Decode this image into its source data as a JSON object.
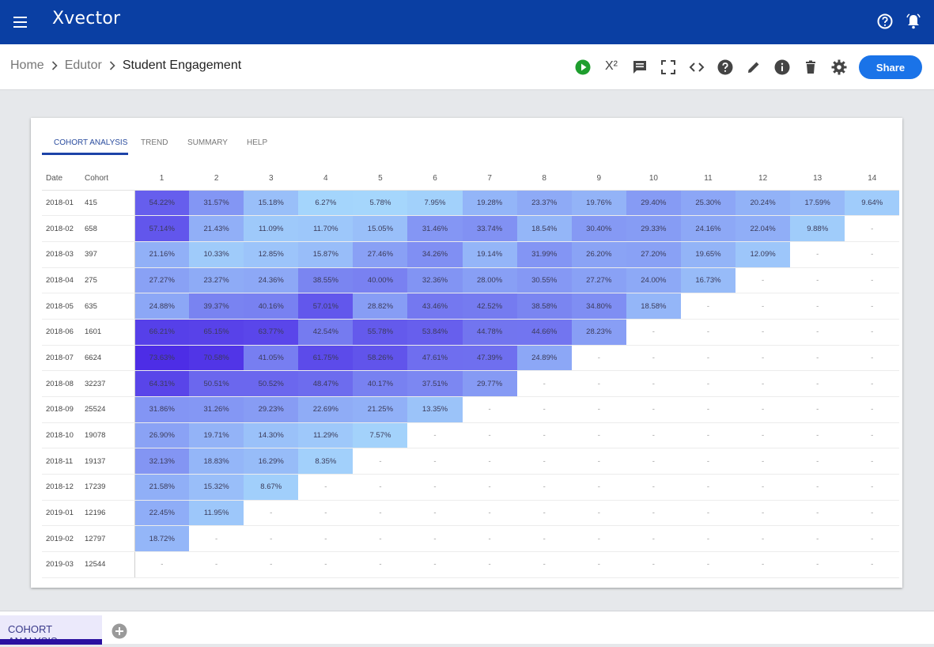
{
  "app": {
    "logo": "Xvector"
  },
  "breadcrumb": {
    "items": [
      "Home",
      "Edutor",
      "Student Engagement"
    ]
  },
  "toolbar": {
    "share_label": "Share",
    "formula_label": "X²"
  },
  "tabs": [
    "COHORT ANALYSIS",
    "TREND",
    "SUMMARY",
    "HELP"
  ],
  "bottom_tabs": [
    "COHORT ANALYSIS"
  ],
  "colors": {
    "topbar": "#0a3fa3",
    "accent": "#1a73e8",
    "run": "#1e9e2e"
  },
  "table": {
    "headers": [
      "Date",
      "Cohort",
      "1",
      "2",
      "3",
      "4",
      "5",
      "6",
      "7",
      "8",
      "9",
      "10",
      "11",
      "12",
      "13",
      "14"
    ],
    "rows": [
      {
        "date": "2018-01",
        "cohort": "415",
        "values": [
          "54.22%",
          "31.57%",
          "15.18%",
          "6.27%",
          "5.78%",
          "7.95%",
          "19.28%",
          "23.37%",
          "19.76%",
          "29.40%",
          "25.30%",
          "20.24%",
          "17.59%",
          "9.64%"
        ]
      },
      {
        "date": "2018-02",
        "cohort": "658",
        "values": [
          "57.14%",
          "21.43%",
          "11.09%",
          "11.70%",
          "15.05%",
          "31.46%",
          "33.74%",
          "18.54%",
          "30.40%",
          "29.33%",
          "24.16%",
          "22.04%",
          "9.88%",
          "-"
        ]
      },
      {
        "date": "2018-03",
        "cohort": "397",
        "values": [
          "21.16%",
          "10.33%",
          "12.85%",
          "15.87%",
          "27.46%",
          "34.26%",
          "19.14%",
          "31.99%",
          "26.20%",
          "27.20%",
          "19.65%",
          "12.09%",
          "-",
          "-"
        ]
      },
      {
        "date": "2018-04",
        "cohort": "275",
        "values": [
          "27.27%",
          "23.27%",
          "24.36%",
          "38.55%",
          "40.00%",
          "32.36%",
          "28.00%",
          "30.55%",
          "27.27%",
          "24.00%",
          "16.73%",
          "-",
          "-",
          "-"
        ]
      },
      {
        "date": "2018-05",
        "cohort": "635",
        "values": [
          "24.88%",
          "39.37%",
          "40.16%",
          "57.01%",
          "28.82%",
          "43.46%",
          "42.52%",
          "38.58%",
          "34.80%",
          "18.58%",
          "-",
          "-",
          "-",
          "-"
        ]
      },
      {
        "date": "2018-06",
        "cohort": "1601",
        "values": [
          "66.21%",
          "65.15%",
          "63.77%",
          "42.54%",
          "55.78%",
          "53.84%",
          "44.78%",
          "44.66%",
          "28.23%",
          "-",
          "-",
          "-",
          "-",
          "-"
        ]
      },
      {
        "date": "2018-07",
        "cohort": "6624",
        "values": [
          "73.63%",
          "70.58%",
          "41.05%",
          "61.75%",
          "58.26%",
          "47.61%",
          "47.39%",
          "24.89%",
          "-",
          "-",
          "-",
          "-",
          "-",
          "-"
        ]
      },
      {
        "date": "2018-08",
        "cohort": "32237",
        "values": [
          "64.31%",
          "50.51%",
          "50.52%",
          "48.47%",
          "40.17%",
          "37.51%",
          "29.77%",
          "-",
          "-",
          "-",
          "-",
          "-",
          "-",
          "-"
        ]
      },
      {
        "date": "2018-09",
        "cohort": "25524",
        "values": [
          "31.86%",
          "31.26%",
          "29.23%",
          "22.69%",
          "21.25%",
          "13.35%",
          "-",
          "-",
          "-",
          "-",
          "-",
          "-",
          "-",
          "-"
        ]
      },
      {
        "date": "2018-10",
        "cohort": "19078",
        "values": [
          "26.90%",
          "19.71%",
          "14.30%",
          "11.29%",
          "7.57%",
          "-",
          "-",
          "-",
          "-",
          "-",
          "-",
          "-",
          "-",
          "-"
        ]
      },
      {
        "date": "2018-11",
        "cohort": "19137",
        "values": [
          "32.13%",
          "18.83%",
          "16.29%",
          "8.35%",
          "-",
          "-",
          "-",
          "-",
          "-",
          "-",
          "-",
          "-",
          "-",
          "-"
        ]
      },
      {
        "date": "2018-12",
        "cohort": "17239",
        "values": [
          "21.58%",
          "15.32%",
          "8.67%",
          "-",
          "-",
          "-",
          "-",
          "-",
          "-",
          "-",
          "-",
          "-",
          "-",
          "-"
        ]
      },
      {
        "date": "2019-01",
        "cohort": "12196",
        "values": [
          "22.45%",
          "11.95%",
          "-",
          "-",
          "-",
          "-",
          "-",
          "-",
          "-",
          "-",
          "-",
          "-",
          "-",
          "-"
        ]
      },
      {
        "date": "2019-02",
        "cohort": "12797",
        "values": [
          "18.72%",
          "-",
          "-",
          "-",
          "-",
          "-",
          "-",
          "-",
          "-",
          "-",
          "-",
          "-",
          "-",
          "-"
        ]
      },
      {
        "date": "2019-03",
        "cohort": "12544",
        "values": [
          "-",
          "-",
          "-",
          "-",
          "-",
          "-",
          "-",
          "-",
          "-",
          "-",
          "-",
          "-",
          "-",
          "-"
        ]
      }
    ]
  }
}
